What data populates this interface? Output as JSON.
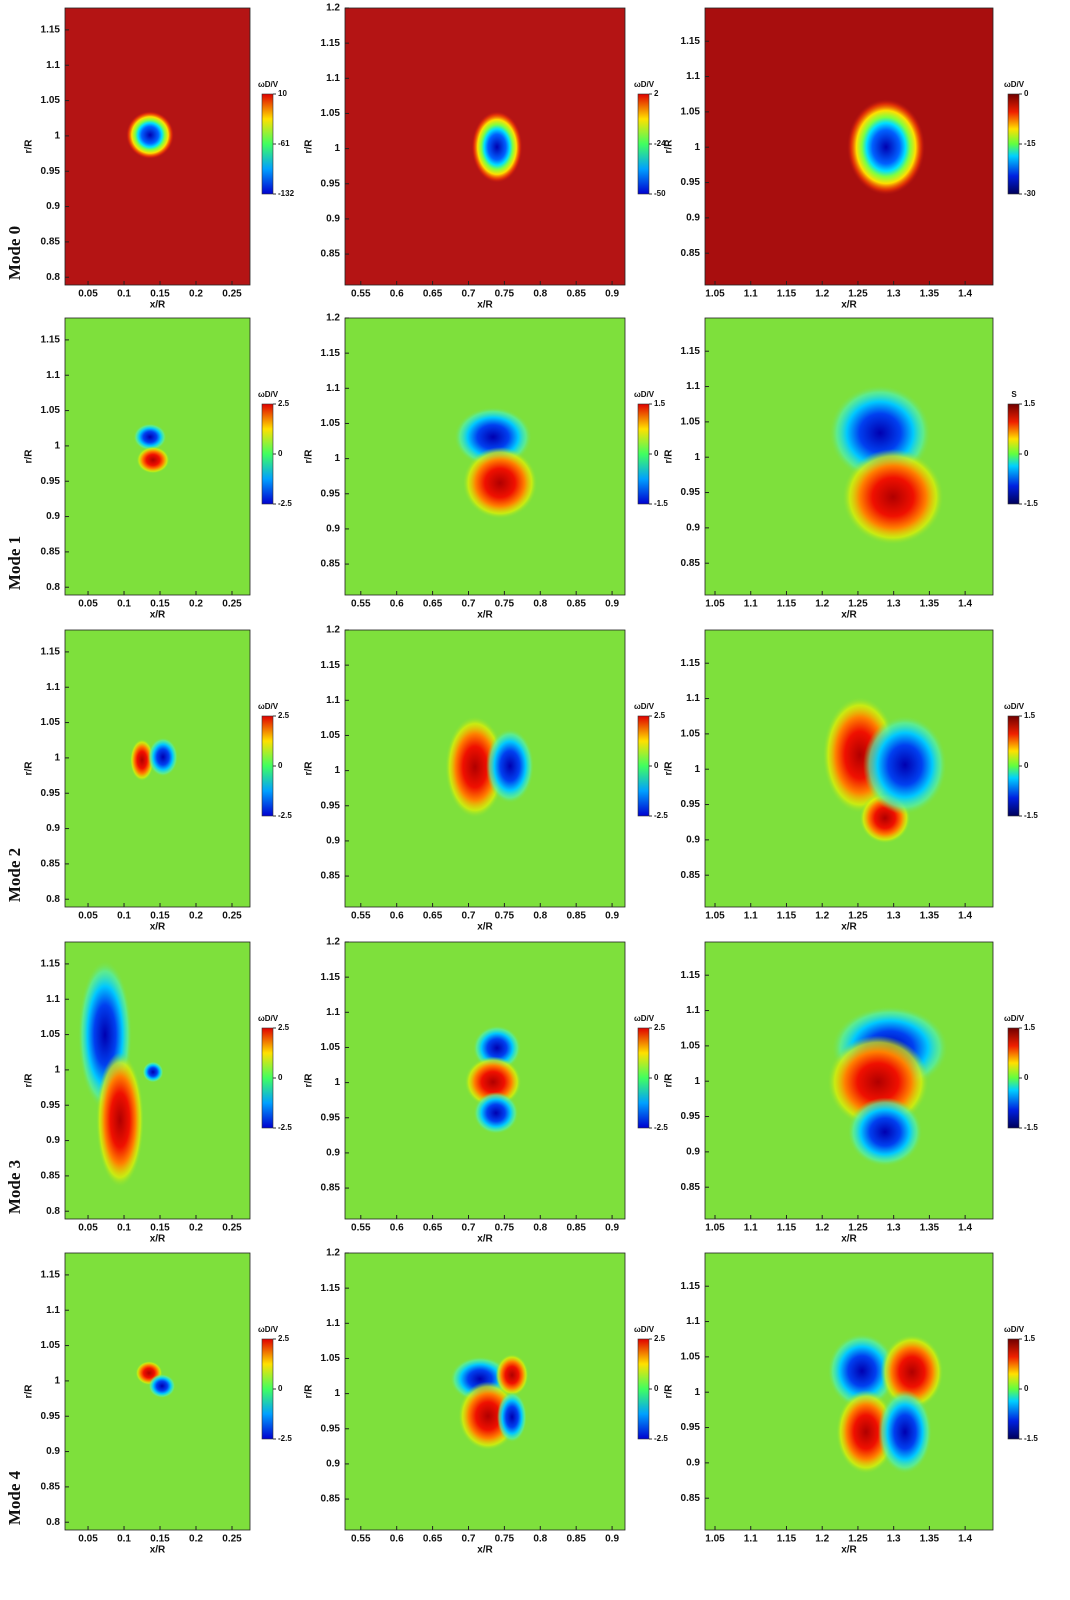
{
  "row_labels": [
    "Mode 0",
    "Mode 1",
    "Mode 2",
    "Mode 3",
    "Mode 4"
  ],
  "chart_data": [
    {
      "type": "contour",
      "x_label": "x/R",
      "y_label": "r/R",
      "background": "#b41414",
      "xlim": [
        0.018,
        0.275
      ],
      "xticks": [
        0.05,
        0.1,
        0.15,
        0.2,
        0.25
      ],
      "ylim": [
        0.789,
        1.181
      ],
      "yticks": [
        0.8,
        0.85,
        0.9,
        0.95,
        1,
        1.05,
        1.1,
        1.15
      ],
      "colorbar": {
        "label": "ωD/V",
        "lim": [
          -132,
          10
        ],
        "ticks": [
          10,
          -61,
          -132
        ]
      }
    },
    {
      "type": "contour",
      "x_label": "x/R",
      "y_label": "r/R",
      "background": "#b41414",
      "xlim": [
        0.528,
        0.918
      ],
      "xticks": [
        0.55,
        0.6,
        0.65,
        0.7,
        0.75,
        0.8,
        0.85,
        0.9
      ],
      "ylim": [
        0.806,
        1.2
      ],
      "yticks": [
        0.85,
        0.9,
        0.95,
        1,
        1.05,
        1.1,
        1.15,
        1.2
      ],
      "colorbar": {
        "label": "ωD/V",
        "lim": [
          -50,
          2
        ],
        "ticks": [
          2,
          -24,
          -50
        ]
      }
    },
    {
      "type": "contour",
      "x_label": "x/R",
      "y_label": "r/R",
      "background": "#a80e0e",
      "xlim": [
        1.036,
        1.439
      ],
      "xticks": [
        1.05,
        1.1,
        1.15,
        1.2,
        1.25,
        1.3,
        1.35,
        1.4
      ],
      "ylim": [
        0.805,
        1.197
      ],
      "yticks": [
        0.85,
        0.9,
        0.95,
        1,
        1.05,
        1.1,
        1.15
      ],
      "colorbar": {
        "label": "ωD/V",
        "lim": [
          -30,
          0
        ],
        "ticks": [
          0,
          -15,
          -30
        ]
      }
    },
    {
      "type": "contour",
      "x_label": "x/R",
      "y_label": "r/R",
      "background": "#7ee03c",
      "xlim": [
        0.018,
        0.275
      ],
      "xticks": [
        0.05,
        0.1,
        0.15,
        0.2,
        0.25
      ],
      "ylim": [
        0.789,
        1.181
      ],
      "yticks": [
        0.8,
        0.85,
        0.9,
        0.95,
        1,
        1.05,
        1.1,
        1.15
      ],
      "colorbar": {
        "label": "ωD/V",
        "lim": [
          -2.5,
          2.5
        ],
        "ticks": [
          2.5,
          0,
          -2.5
        ]
      }
    },
    {
      "type": "contour",
      "x_label": "x/R",
      "y_label": "r/R",
      "background": "#7ee03c",
      "xlim": [
        0.528,
        0.918
      ],
      "xticks": [
        0.55,
        0.6,
        0.65,
        0.7,
        0.75,
        0.8,
        0.85,
        0.9
      ],
      "ylim": [
        0.806,
        1.2
      ],
      "yticks": [
        0.85,
        0.9,
        0.95,
        1,
        1.05,
        1.1,
        1.15,
        1.2
      ],
      "colorbar": {
        "label": "ωD/V",
        "lim": [
          -1.5,
          1.5
        ],
        "ticks": [
          1.5,
          0,
          -1.5
        ]
      }
    },
    {
      "type": "contour",
      "x_label": "x/R",
      "y_label": "r/R",
      "background": "#7ee03c",
      "xlim": [
        1.036,
        1.439
      ],
      "xticks": [
        1.05,
        1.1,
        1.15,
        1.2,
        1.25,
        1.3,
        1.35,
        1.4
      ],
      "ylim": [
        0.805,
        1.197
      ],
      "yticks": [
        0.85,
        0.9,
        0.95,
        1,
        1.05,
        1.1,
        1.15
      ],
      "colorbar": {
        "label": "S",
        "lim": [
          -1.5,
          1.5
        ],
        "ticks": [
          1.5,
          0,
          -1.5
        ]
      }
    },
    {
      "type": "contour",
      "x_label": "x/R",
      "y_label": "r/R",
      "background": "#7ee03c",
      "xlim": [
        0.018,
        0.275
      ],
      "xticks": [
        0.05,
        0.1,
        0.15,
        0.2,
        0.25
      ],
      "ylim": [
        0.789,
        1.181
      ],
      "yticks": [
        0.8,
        0.85,
        0.9,
        0.95,
        1,
        1.05,
        1.1,
        1.15
      ],
      "colorbar": {
        "label": "ωD/V",
        "lim": [
          -2.5,
          2.5
        ],
        "ticks": [
          2.5,
          0,
          -2.5
        ]
      }
    },
    {
      "type": "contour",
      "x_label": "x/R",
      "y_label": "r/R",
      "background": "#7ee03c",
      "xlim": [
        0.528,
        0.918
      ],
      "xticks": [
        0.55,
        0.6,
        0.65,
        0.7,
        0.75,
        0.8,
        0.85,
        0.9
      ],
      "ylim": [
        0.806,
        1.2
      ],
      "yticks": [
        0.85,
        0.9,
        0.95,
        1,
        1.05,
        1.1,
        1.15,
        1.2
      ],
      "colorbar": {
        "label": "ωD/V",
        "lim": [
          -2.5,
          2.5
        ],
        "ticks": [
          2.5,
          0,
          -2.5
        ]
      }
    },
    {
      "type": "contour",
      "x_label": "x/R",
      "y_label": "r/R",
      "background": "#7ee03c",
      "xlim": [
        1.036,
        1.439
      ],
      "xticks": [
        1.05,
        1.1,
        1.15,
        1.2,
        1.25,
        1.3,
        1.35,
        1.4
      ],
      "ylim": [
        0.805,
        1.197
      ],
      "yticks": [
        0.85,
        0.9,
        0.95,
        1,
        1.05,
        1.1,
        1.15
      ],
      "colorbar": {
        "label": "ωD/V",
        "lim": [
          -1.5,
          1.5
        ],
        "ticks": [
          1.5,
          0,
          -1.5
        ]
      }
    },
    {
      "type": "contour",
      "x_label": "x/R",
      "y_label": "r/R",
      "background": "#7ee03c",
      "xlim": [
        0.018,
        0.275
      ],
      "xticks": [
        0.05,
        0.1,
        0.15,
        0.2,
        0.25
      ],
      "ylim": [
        0.789,
        1.181
      ],
      "yticks": [
        0.8,
        0.85,
        0.9,
        0.95,
        1,
        1.05,
        1.1,
        1.15
      ],
      "colorbar": {
        "label": "ωD/V",
        "lim": [
          -2.5,
          2.5
        ],
        "ticks": [
          2.5,
          0,
          -2.5
        ]
      }
    },
    {
      "type": "contour",
      "x_label": "x/R",
      "y_label": "r/R",
      "background": "#7ee03c",
      "xlim": [
        0.528,
        0.918
      ],
      "xticks": [
        0.55,
        0.6,
        0.65,
        0.7,
        0.75,
        0.8,
        0.85,
        0.9
      ],
      "ylim": [
        0.806,
        1.2
      ],
      "yticks": [
        0.85,
        0.9,
        0.95,
        1,
        1.05,
        1.1,
        1.15,
        1.2
      ],
      "colorbar": {
        "label": "ωD/V",
        "lim": [
          -2.5,
          2.5
        ],
        "ticks": [
          2.5,
          0,
          -2.5
        ]
      }
    },
    {
      "type": "contour",
      "x_label": "x/R",
      "y_label": "r/R",
      "background": "#7ee03c",
      "xlim": [
        1.036,
        1.439
      ],
      "xticks": [
        1.05,
        1.1,
        1.15,
        1.2,
        1.25,
        1.3,
        1.35,
        1.4
      ],
      "ylim": [
        0.805,
        1.197
      ],
      "yticks": [
        0.85,
        0.9,
        0.95,
        1,
        1.05,
        1.1,
        1.15
      ],
      "colorbar": {
        "label": "ωD/V",
        "lim": [
          -1.5,
          1.5
        ],
        "ticks": [
          1.5,
          0,
          -1.5
        ]
      }
    },
    {
      "type": "contour",
      "x_label": "x/R",
      "y_label": "r/R",
      "background": "#7ee03c",
      "xlim": [
        0.018,
        0.275
      ],
      "xticks": [
        0.05,
        0.1,
        0.15,
        0.2,
        0.25
      ],
      "ylim": [
        0.789,
        1.181
      ],
      "yticks": [
        0.8,
        0.85,
        0.9,
        0.95,
        1,
        1.05,
        1.1,
        1.15
      ],
      "colorbar": {
        "label": "ωD/V",
        "lim": [
          -2.5,
          2.5
        ],
        "ticks": [
          2.5,
          0,
          -2.5
        ]
      }
    },
    {
      "type": "contour",
      "x_label": "x/R",
      "y_label": "r/R",
      "background": "#7ee03c",
      "xlim": [
        0.528,
        0.918
      ],
      "xticks": [
        0.55,
        0.6,
        0.65,
        0.7,
        0.75,
        0.8,
        0.85,
        0.9
      ],
      "ylim": [
        0.806,
        1.2
      ],
      "yticks": [
        0.85,
        0.9,
        0.95,
        1,
        1.05,
        1.1,
        1.15,
        1.2
      ],
      "colorbar": {
        "label": "ωD/V",
        "lim": [
          -2.5,
          2.5
        ],
        "ticks": [
          2.5,
          0,
          -2.5
        ]
      }
    },
    {
      "type": "contour",
      "x_label": "x/R",
      "y_label": "r/R",
      "background": "#7ee03c",
      "xlim": [
        1.036,
        1.439
      ],
      "xticks": [
        1.05,
        1.1,
        1.15,
        1.2,
        1.25,
        1.3,
        1.35,
        1.4
      ],
      "ylim": [
        0.805,
        1.197
      ],
      "yticks": [
        0.85,
        0.9,
        0.95,
        1,
        1.05,
        1.1,
        1.15
      ],
      "colorbar": {
        "label": "ωD/V",
        "lim": [
          -1.5,
          1.5
        ],
        "ticks": [
          1.5,
          0,
          -1.5
        ]
      }
    }
  ]
}
